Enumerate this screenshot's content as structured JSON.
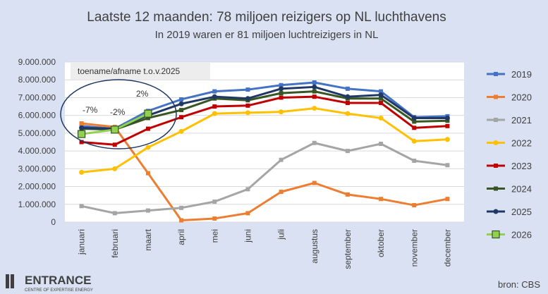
{
  "title": "Laatste 12 maanden: 78 miljoen reizigers op NL luchthavens",
  "subtitle": "In 2019 waren er 81 miljoen luchtreizigers in NL",
  "annotation_box": "toename/afname t.o.v.2025",
  "annotations": [
    "-7%",
    "-2%",
    "2%"
  ],
  "source": "bron: CBS",
  "logo": {
    "name": "ENTRANCE",
    "tagline": "CENTRE OF EXPERTISE ENERGY"
  },
  "chart_data": {
    "type": "line",
    "categories": [
      "januari",
      "februari",
      "maart",
      "april",
      "mei",
      "juni",
      "juli",
      "augustus",
      "september",
      "oktober",
      "november",
      "december"
    ],
    "ylim": [
      0,
      9000000
    ],
    "yticks": [
      0,
      1000000,
      2000000,
      3000000,
      4000000,
      5000000,
      6000000,
      7000000,
      8000000,
      9000000
    ],
    "ytick_labels": [
      "0",
      "1.000.000",
      "2.000.000",
      "3.000.000",
      "4.000.000",
      "5.000.000",
      "6.000.000",
      "7.000.000",
      "8.000.000",
      "9.000.000"
    ],
    "grid": true,
    "legend_position": "right",
    "series": [
      {
        "name": "2019",
        "color": "#4472c4",
        "marker": "square",
        "values": [
          5400000,
          5250000,
          6250000,
          6900000,
          7350000,
          7450000,
          7700000,
          7850000,
          7500000,
          7350000,
          5900000,
          5950000
        ]
      },
      {
        "name": "2020",
        "color": "#ed7d31",
        "marker": "square",
        "values": [
          5550000,
          5350000,
          2750000,
          100000,
          200000,
          500000,
          1700000,
          2200000,
          1550000,
          1300000,
          950000,
          1300000
        ]
      },
      {
        "name": "2021",
        "color": "#a5a5a5",
        "marker": "square",
        "values": [
          900000,
          500000,
          650000,
          800000,
          1150000,
          1850000,
          3500000,
          4450000,
          4000000,
          4400000,
          3450000,
          3200000
        ]
      },
      {
        "name": "2022",
        "color": "#ffc000",
        "marker": "circle",
        "values": [
          2800000,
          3000000,
          4200000,
          5100000,
          6100000,
          6150000,
          6200000,
          6400000,
          6100000,
          5850000,
          4550000,
          4650000
        ]
      },
      {
        "name": "2023",
        "color": "#c00000",
        "marker": "square",
        "values": [
          4500000,
          4350000,
          5250000,
          5900000,
          6500000,
          6550000,
          7000000,
          7050000,
          6700000,
          6700000,
          5300000,
          5400000
        ]
      },
      {
        "name": "2024",
        "color": "#375623",
        "marker": "square",
        "values": [
          5250000,
          5200000,
          5850000,
          6300000,
          6950000,
          6850000,
          7250000,
          7350000,
          6950000,
          6950000,
          5650000,
          5700000
        ]
      },
      {
        "name": "2025",
        "color": "#203864",
        "marker": "circle",
        "values": [
          5300000,
          5250000,
          6000000,
          6650000,
          7050000,
          6950000,
          7500000,
          7600000,
          7050000,
          7150000,
          5850000,
          5850000
        ]
      },
      {
        "name": "2026",
        "color": "#92d050",
        "marker": "square-outlined",
        "values": [
          4950000,
          5200000,
          6100000,
          null,
          null,
          null,
          null,
          null,
          null,
          null,
          null,
          null
        ]
      }
    ]
  }
}
